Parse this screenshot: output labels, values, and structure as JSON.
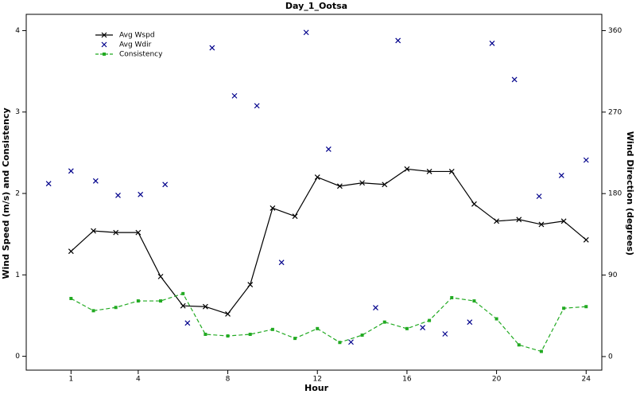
{
  "chart_data": {
    "type": "line",
    "title": "Day_1_Ootsa",
    "xlabel": "Hour",
    "ylabel": "Wind Speed (m/s) and Consistency",
    "y2label": "Wind Direction (degrees)",
    "xlim": [
      -1,
      24.7
    ],
    "xticks": [
      1,
      4,
      8,
      12,
      16,
      20,
      24
    ],
    "ylim": [
      -0.17,
      4.2
    ],
    "yticks": [
      0,
      1,
      2,
      3,
      4
    ],
    "y2lim": [
      -15,
      378
    ],
    "y2ticks": [
      0,
      90,
      180,
      270,
      360
    ],
    "legend": "upper-left",
    "series": [
      {
        "name": "Avg Wspd",
        "type": "line",
        "marker": "x",
        "dash": false,
        "color": "#000000",
        "x": [
          1,
          2,
          3,
          4,
          5,
          6,
          7,
          8,
          9,
          10,
          11,
          12,
          13,
          14,
          15,
          16,
          17,
          18,
          19,
          20,
          21,
          22,
          23,
          24
        ],
        "values": [
          1.29,
          1.54,
          1.52,
          1.52,
          0.98,
          0.62,
          0.61,
          0.52,
          0.88,
          1.82,
          1.72,
          2.2,
          2.09,
          2.13,
          2.11,
          2.3,
          2.27,
          2.27,
          1.87,
          1.66,
          1.68,
          1.62,
          1.66,
          1.43
        ]
      },
      {
        "name": "Avg Wdir",
        "type": "scatter",
        "marker": "x",
        "dash": false,
        "color": "#00008b",
        "axis": "y2",
        "x": [
          0,
          1,
          2.1,
          3.1,
          4.1,
          5.2,
          6.2,
          7.3,
          8.3,
          9.3,
          10.4,
          11.5,
          12.5,
          13.5,
          14.6,
          15.6,
          16.7,
          17.7,
          18.8,
          19.8,
          20.8,
          21.9,
          22.9,
          24
        ],
        "values": [
          191,
          205,
          194,
          178,
          179,
          190,
          37,
          341,
          288,
          277,
          104,
          358,
          229,
          16,
          54,
          349,
          32,
          25,
          38,
          346,
          306,
          177,
          200,
          217
        ]
      },
      {
        "name": "Consistency",
        "type": "line",
        "marker": "square",
        "dash": true,
        "color": "#22aa22",
        "x": [
          1,
          2,
          3,
          4,
          5,
          6,
          7,
          8,
          9,
          10,
          11,
          12,
          13,
          14,
          15,
          16,
          17,
          18,
          19,
          20,
          21,
          22,
          23,
          24
        ],
        "values": [
          0.71,
          0.56,
          0.6,
          0.68,
          0.68,
          0.77,
          0.27,
          0.25,
          0.27,
          0.33,
          0.22,
          0.34,
          0.17,
          0.26,
          0.42,
          0.34,
          0.44,
          0.72,
          0.68,
          0.46,
          0.14,
          0.06,
          0.59,
          0.61
        ]
      }
    ]
  }
}
